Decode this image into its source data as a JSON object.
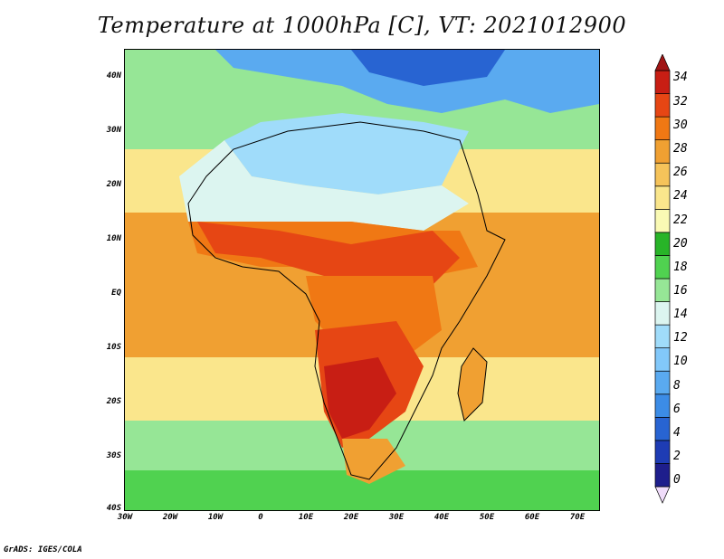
{
  "title": "Temperature at 1000hPa [C], VT: 2021012900",
  "credit": "GrADS: IGES/COLA",
  "map": {
    "lat_ticks": [
      "40N",
      "30N",
      "20N",
      "10N",
      "EQ",
      "10S",
      "20S",
      "30S",
      "40S"
    ],
    "lon_ticks": [
      "30W",
      "20W",
      "10W",
      "0",
      "10E",
      "20E",
      "30E",
      "40E",
      "50E",
      "60E",
      "70E"
    ],
    "field": "Temperature at 1000hPa",
    "units": "C"
  },
  "colorbar": {
    "labels": [
      "34",
      "32",
      "30",
      "28",
      "26",
      "24",
      "22",
      "20",
      "18",
      "16",
      "14",
      "12",
      "10",
      "8",
      "6",
      "4",
      "2",
      "0"
    ],
    "colors": [
      "#f0dcfa",
      "#1e1e8c",
      "#1e3cb4",
      "#2864d2",
      "#3c8ce6",
      "#5aaaf0",
      "#82c8fa",
      "#a0dcfa",
      "#dcf5f0",
      "#96e696",
      "#50d250",
      "#28b428",
      "#fafab4",
      "#fae68c",
      "#f5c35a",
      "#f0a032",
      "#f07814",
      "#e64614",
      "#c81e14",
      "#a01414"
    ]
  }
}
